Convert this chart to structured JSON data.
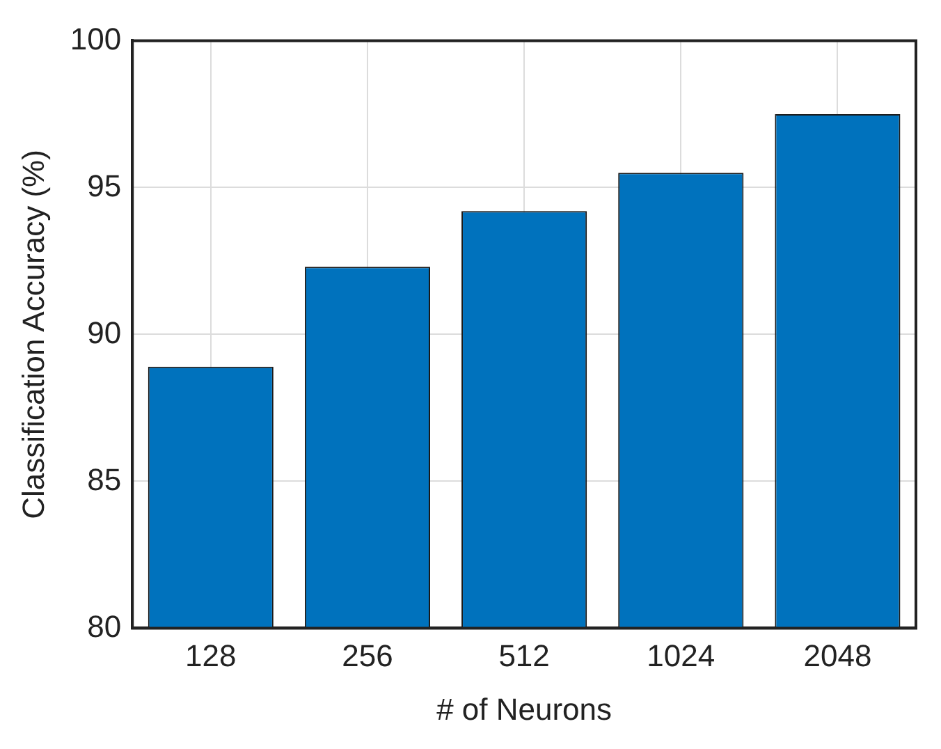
{
  "chart_data": {
    "type": "bar",
    "xlabel": "# of Neurons",
    "ylabel": "Classification Accuracy (%)",
    "categories": [
      "128",
      "256",
      "512",
      "1024",
      "2048"
    ],
    "values": [
      88.9,
      92.3,
      94.2,
      95.5,
      97.5
    ],
    "color": "#0072bd",
    "ylim": [
      80,
      100
    ],
    "yticks": [
      80,
      85,
      90,
      95,
      100
    ],
    "grid": true,
    "legend": false
  }
}
